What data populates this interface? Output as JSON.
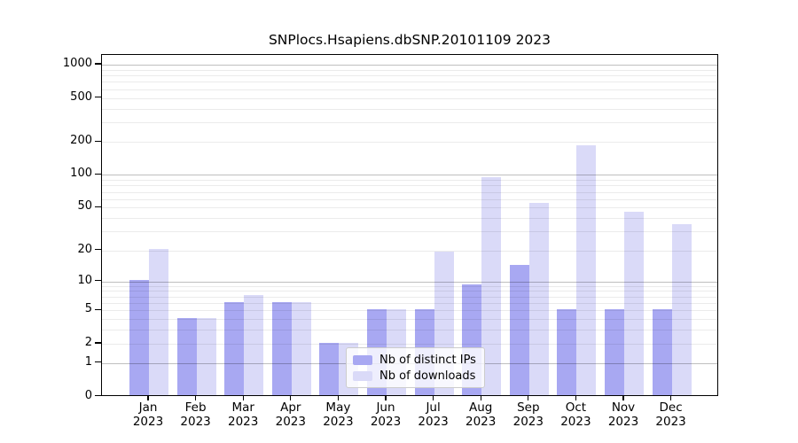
{
  "chart_data": {
    "type": "bar",
    "title": "SNPlocs.Hsapiens.dbSNP.20101109 2023",
    "categories": [
      "Jan",
      "Feb",
      "Mar",
      "Apr",
      "May",
      "Jun",
      "Jul",
      "Aug",
      "Sep",
      "Oct",
      "Nov",
      "Dec"
    ],
    "category_year": "2023",
    "series": [
      {
        "name": "Nb of distinct IPs",
        "color": "#a8a8f2",
        "values": [
          10,
          4,
          6,
          6,
          2,
          5,
          5,
          9,
          14,
          5,
          5,
          5
        ]
      },
      {
        "name": "Nb of downloads",
        "color": "#dadaf8",
        "values": [
          20,
          4,
          7,
          6,
          2,
          5,
          19,
          92,
          54,
          182,
          45,
          34
        ]
      }
    ],
    "ytick_values": [
      0,
      1,
      2,
      5,
      10,
      20,
      50,
      100,
      200,
      500,
      1000
    ],
    "ytick_labels": [
      "0",
      "1",
      "2",
      "5",
      "10",
      "20",
      "50",
      "100",
      "200",
      "500",
      "1000"
    ],
    "yscale": "log10(value+1)",
    "ylim": [
      0,
      1100
    ],
    "xlabel": "",
    "ylabel": "",
    "grid": "both",
    "legend_position": "lower center"
  },
  "colors": {
    "background": "#ffffff",
    "axis_frame": "#000000",
    "grid_major": "#bfbfbf",
    "grid_minor": "#ebebeb",
    "text": "#000000"
  }
}
